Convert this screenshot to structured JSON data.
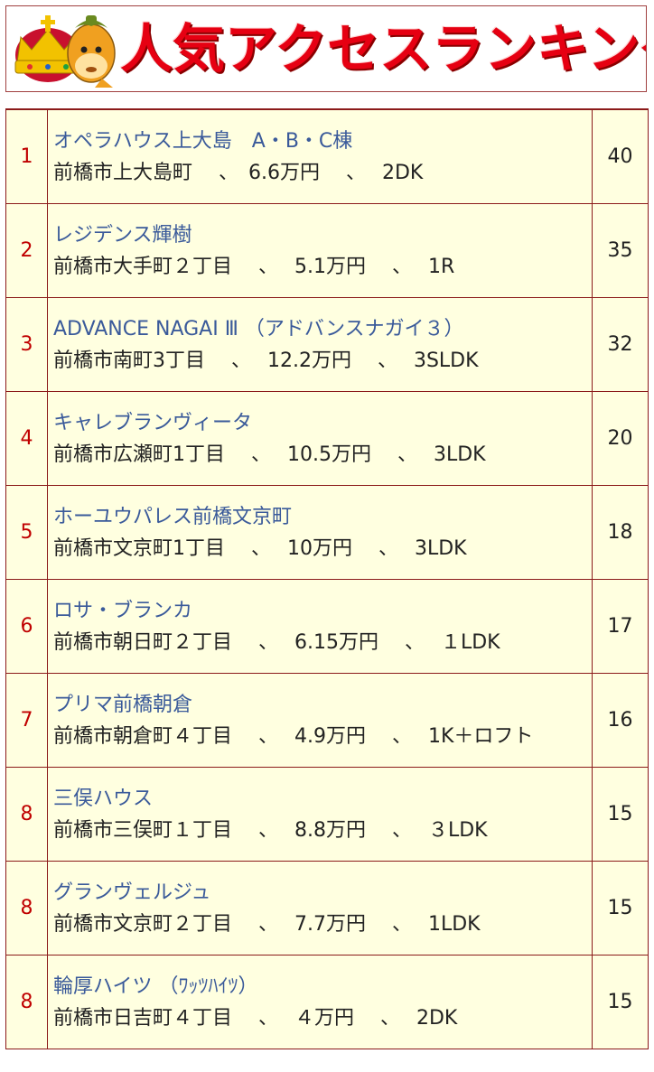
{
  "banner": {
    "title": "人気アクセスランキング",
    "mascot": "crowned-horse-mascot-icon"
  },
  "colors": {
    "title_red": "#e60012",
    "rank_red": "#c00000",
    "name_blue": "#3a5a9a",
    "table_bg": "#ffffe0",
    "border": "#8b1a1a"
  },
  "rows": [
    {
      "rank": "1",
      "name": "オペラハウス上大島　A・B・C棟",
      "detail": "前橋市上大島町　 、　6.6万円　 、　 2DK",
      "count": "40"
    },
    {
      "rank": "2",
      "name": "レジデンス輝樹",
      "detail": "前橋市大手町２丁目　 、　 5.1万円　 、　 1R",
      "count": "35"
    },
    {
      "rank": "3",
      "name": "ADVANCE NAGAI Ⅲ （アドバンスナガイ３）",
      "detail": "前橋市南町3丁目　 、　 12.2万円　 、　 3SLDK",
      "count": "32"
    },
    {
      "rank": "4",
      "name": "キャレブランヴィータ",
      "detail": "前橋市広瀬町1丁目　 、　 10.5万円　 、　 3LDK",
      "count": "20"
    },
    {
      "rank": "5",
      "name": "ホーユウパレス前橋文京町",
      "detail": "前橋市文京町1丁目　 、　 10万円　 、　 3LDK",
      "count": "18"
    },
    {
      "rank": "6",
      "name": "ロサ・ブランカ",
      "detail": "前橋市朝日町２丁目　 、　 6.15万円　 、　 １LDK",
      "count": "17"
    },
    {
      "rank": "7",
      "name": "プリマ前橋朝倉",
      "detail": "前橋市朝倉町４丁目　 、　 4.9万円　 、　 1K＋ロフト",
      "count": "16"
    },
    {
      "rank": "8",
      "name": "三俣ハウス",
      "detail": "前橋市三俣町１丁目　 、　 8.8万円　 、　 ３LDK",
      "count": "15"
    },
    {
      "rank": "8",
      "name": "グランヴェルジュ",
      "detail": "前橋市文京町２丁目　 、　 7.7万円　 、　 1LDK",
      "count": "15"
    },
    {
      "rank": "8",
      "name": "輪厚ハイツ （ﾜｯﾂﾊｲﾂ）",
      "detail": "前橋市日吉町４丁目　 、　 ４万円　 、　 2DK",
      "count": "15"
    }
  ]
}
